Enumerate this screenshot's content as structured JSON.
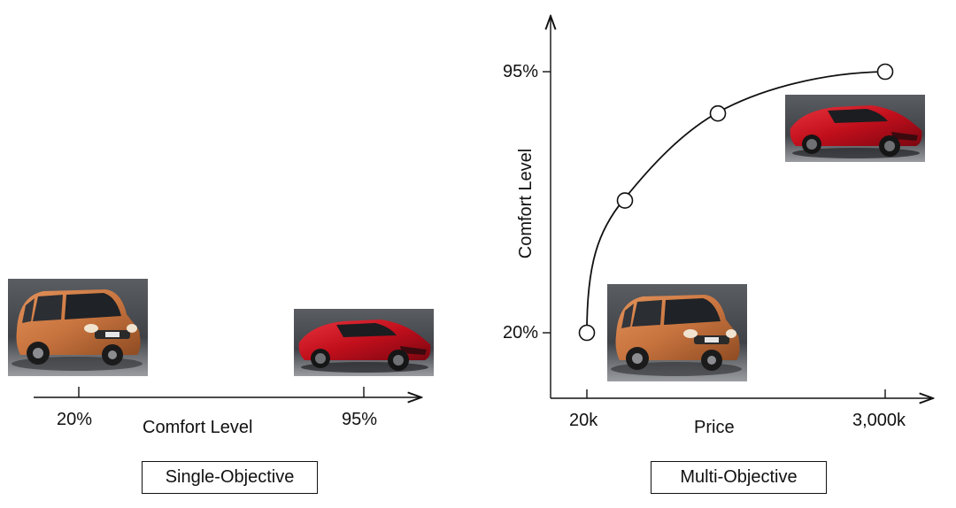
{
  "left_panel": {
    "caption": "Single-Objective",
    "axis_label": "Comfort Level",
    "ticks": [
      "20%",
      "95%"
    ],
    "images": [
      {
        "label": "economy-car",
        "comfort": "20%"
      },
      {
        "label": "sports-car",
        "comfort": "95%"
      }
    ]
  },
  "right_panel": {
    "caption": "Multi-Objective",
    "x_label": "Price",
    "y_label": "Comfort Level",
    "x_ticks": [
      "20k",
      "3,000k"
    ],
    "y_ticks": [
      "20%",
      "95%"
    ],
    "images": [
      {
        "label": "economy-car"
      },
      {
        "label": "sports-car"
      }
    ]
  },
  "colors": {
    "axis": "#111111",
    "economy_car_body": "#c8743f",
    "sports_car_body": "#c8101e",
    "photo_background": "#4a4d52"
  },
  "chart_data": {
    "type": "line",
    "title": "",
    "xlabel": "Price",
    "ylabel": "Comfort Level",
    "x_tick_labels": [
      "20k",
      "3,000k"
    ],
    "y_tick_labels": [
      "20%",
      "95%"
    ],
    "series": [
      {
        "points": [
          {
            "x": 20,
            "y": 20
          },
          {
            "x": 150,
            "y": 58
          },
          {
            "x": 1350,
            "y": 83
          },
          {
            "x": 3000,
            "y": 95
          }
        ]
      }
    ],
    "x_scale": "nonlinear",
    "grid": false
  }
}
